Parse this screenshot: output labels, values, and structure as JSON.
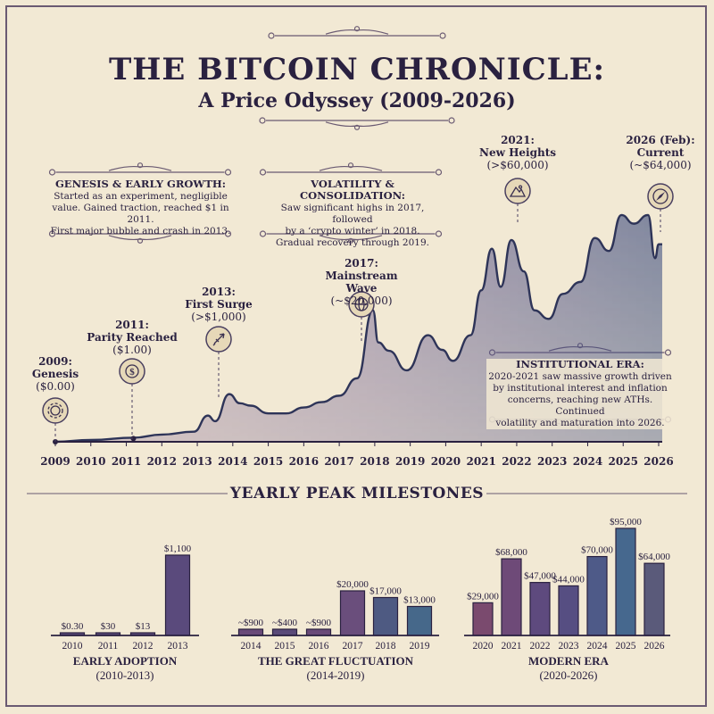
{
  "title": "THE BITCOIN CHRONICLE:",
  "subtitle": "A Price Odyssey (2009-2026)",
  "colors": {
    "background": "#f2e9d4",
    "text": "#2a2140",
    "line": "#2e3458",
    "fill_start": "#8a6a98",
    "fill_end": "#3e4f80"
  },
  "boxes": [
    {
      "heading": "GENESIS & EARLY GROWTH:",
      "lines": [
        "Started as an experiment, negligible",
        "value. Gained traction, reached $1 in 2011.",
        "First major bubble and crash in 2013."
      ]
    },
    {
      "heading": "VOLATILITY & CONSOLIDATION:",
      "lines": [
        "Saw significant highs in 2017, followed",
        "by a ‘crypto winter’ in 2018.",
        "Gradual recovery through 2019."
      ]
    },
    {
      "heading": "INSTITUTIONAL ERA:",
      "lines": [
        "2020-2021 saw massive growth driven",
        "by institutional interest and inflation",
        "concerns, reaching new ATHs. Continued",
        "volatility and maturation into 2026."
      ]
    }
  ],
  "annotations": [
    {
      "year": "2009:",
      "label": "Genesis",
      "value": "($0.00)",
      "icon": "gear-icon"
    },
    {
      "year": "2011:",
      "label": "Parity Reached",
      "value": "($1.00)",
      "icon": "coin-icon"
    },
    {
      "year": "2013:",
      "label": "First Surge",
      "value": "(>$1,000)",
      "icon": "rocket-icon"
    },
    {
      "year": "2017:",
      "label": "Mainstream Wave",
      "value": "(~$20,000)",
      "icon": "globe-icon"
    },
    {
      "year": "2021:",
      "label": "New Heights",
      "value": "(>$60,000)",
      "icon": "mountain-icon"
    },
    {
      "year": "2026 (Feb):",
      "label": "Current",
      "value": "(~$64,000)",
      "icon": "compass-icon"
    }
  ],
  "milestones_title": "YEARLY PEAK MILESTONES",
  "chart_data": [
    {
      "type": "area",
      "x_ticks": [
        "2009",
        "2010",
        "2011",
        "2012",
        "2013",
        "2014",
        "2015",
        "2016",
        "2017",
        "2018",
        "2019",
        "2020",
        "2021",
        "2022",
        "2023",
        "2024",
        "2025",
        "2026"
      ],
      "xlim": [
        2009,
        2026.1
      ],
      "ylabel": "",
      "y_axis_shown": false,
      "points": [
        [
          2009,
          0
        ],
        [
          2010,
          0.1
        ],
        [
          2011.2,
          1
        ],
        [
          2012,
          5
        ],
        [
          2012.9,
          13
        ],
        [
          2013.3,
          200
        ],
        [
          2013.5,
          100
        ],
        [
          2013.9,
          1100
        ],
        [
          2014.2,
          600
        ],
        [
          2014.5,
          500
        ],
        [
          2015,
          250
        ],
        [
          2015.5,
          250
        ],
        [
          2016,
          430
        ],
        [
          2016.5,
          650
        ],
        [
          2017,
          1000
        ],
        [
          2017.5,
          2500
        ],
        [
          2017.95,
          20000
        ],
        [
          2018.1,
          9000
        ],
        [
          2018.4,
          7000
        ],
        [
          2018.9,
          3500
        ],
        [
          2019.5,
          11000
        ],
        [
          2019.9,
          7200
        ],
        [
          2020.2,
          5000
        ],
        [
          2020.7,
          11000
        ],
        [
          2021.0,
          30000
        ],
        [
          2021.3,
          60000
        ],
        [
          2021.55,
          32000
        ],
        [
          2021.85,
          68000
        ],
        [
          2022.2,
          42000
        ],
        [
          2022.5,
          20000
        ],
        [
          2022.9,
          16500
        ],
        [
          2023.3,
          28000
        ],
        [
          2023.8,
          35000
        ],
        [
          2024.2,
          70000
        ],
        [
          2024.6,
          58000
        ],
        [
          2024.95,
          95000
        ],
        [
          2025.3,
          85000
        ],
        [
          2025.7,
          95000
        ],
        [
          2025.9,
          52000
        ],
        [
          2026.0,
          64000
        ],
        [
          2026.1,
          64000
        ]
      ]
    },
    {
      "type": "bar",
      "title": "EARLY ADOPTION",
      "subtitle": "(2010-2013)",
      "categories": [
        "2010",
        "2011",
        "2012",
        "2013"
      ],
      "values": [
        0.3,
        30,
        13,
        1100
      ],
      "labels": [
        "$0.30",
        "$30",
        "$13",
        "$1,100"
      ],
      "colors": [
        "#5a4a78",
        "#5a4a78",
        "#5a4a78",
        "#5a4a7c"
      ]
    },
    {
      "type": "bar",
      "title": "THE GREAT FLUCTUATION",
      "subtitle": "(2014-2019)",
      "categories": [
        "2014",
        "2015",
        "2016",
        "2017",
        "2018",
        "2019"
      ],
      "values": [
        900,
        400,
        900,
        20000,
        17000,
        13000
      ],
      "labels": [
        "~$900",
        "~$400",
        "~$900",
        "$20,000",
        "$17,000",
        "$13,000"
      ],
      "colors": [
        "#6a4a78",
        "#5a4a78",
        "#6a4a78",
        "#6a4e7c",
        "#4e5a82",
        "#46688a"
      ]
    },
    {
      "type": "bar",
      "title": "MODERN ERA",
      "subtitle": "(2020-2026)",
      "categories": [
        "2020",
        "2021",
        "2022",
        "2023",
        "2024",
        "2025",
        "2026"
      ],
      "values": [
        29000,
        68000,
        47000,
        44000,
        70000,
        95000,
        64000
      ],
      "labels": [
        "$29,000",
        "$68,000",
        "$47,000",
        "$44,000",
        "$70,000",
        "$95,000",
        "$64,000"
      ],
      "colors": [
        "#7a4a6e",
        "#6e4a78",
        "#5e4a7e",
        "#564e82",
        "#4e5a88",
        "#46688e",
        "#5a5a7a"
      ]
    }
  ]
}
